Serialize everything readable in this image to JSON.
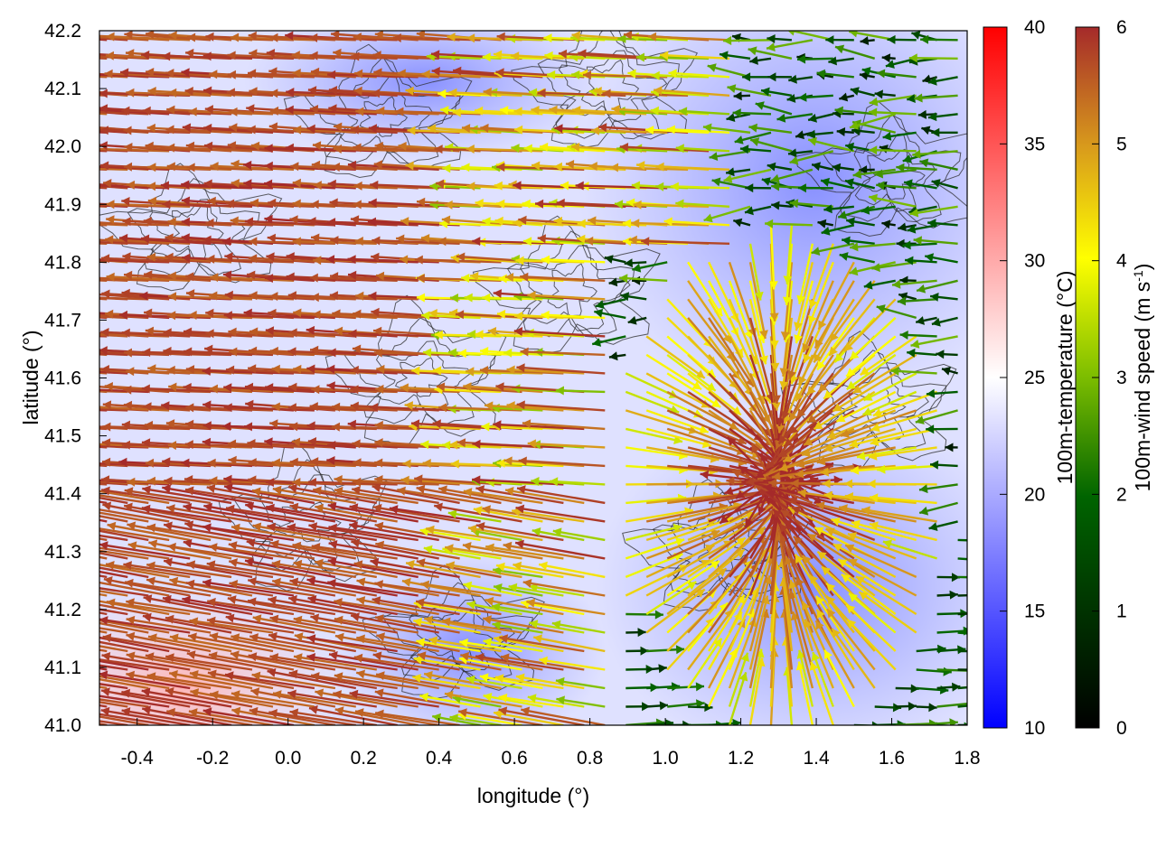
{
  "chart_data": {
    "type": "vector-field",
    "xlabel": "longitude (°)",
    "ylabel": "latitude (°)",
    "xlim": [
      -0.5,
      1.8
    ],
    "ylim": [
      41.0,
      42.2
    ],
    "xticks": [
      "-0.4",
      "-0.2",
      "0.0",
      "0.2",
      "0.4",
      "0.6",
      "0.8",
      "1.0",
      "1.2",
      "1.4",
      "1.6",
      "1.8"
    ],
    "xtick_values": [
      -0.4,
      -0.2,
      0.0,
      0.2,
      0.4,
      0.6,
      0.8,
      1.0,
      1.2,
      1.4,
      1.6,
      1.8
    ],
    "yticks": [
      "41.0",
      "41.1",
      "41.2",
      "41.3",
      "41.4",
      "41.5",
      "41.6",
      "41.7",
      "41.8",
      "41.9",
      "42.0",
      "42.1",
      "42.2"
    ],
    "ytick_values": [
      41.0,
      41.1,
      41.2,
      41.3,
      41.4,
      41.5,
      41.6,
      41.7,
      41.8,
      41.9,
      42.0,
      42.1,
      42.2
    ],
    "background_field": {
      "variable": "100m-temperature",
      "unit": "°C",
      "range": [
        10,
        40
      ],
      "typical": 20,
      "warm_region": {
        "lon": [
          -0.5,
          0.1
        ],
        "lat": [
          41.0,
          41.2
        ],
        "value": 28
      },
      "cool_region": {
        "lon": [
          0.9,
          1.8
        ],
        "lat": [
          41.6,
          42.2
        ],
        "value": 16
      }
    },
    "vector_field": {
      "variable": "100m-wind speed",
      "unit": "m s-1",
      "range": [
        0,
        6
      ],
      "west_flow_speed": 6,
      "convergence_center": [
        1.3,
        41.42
      ],
      "east_flow_speed": 2
    },
    "colorbars": [
      {
        "name": "temperature",
        "title": "100m-temperature (°C)",
        "ticks": [
          "10",
          "15",
          "20",
          "25",
          "30",
          "35",
          "40"
        ],
        "tick_values": [
          10,
          15,
          20,
          25,
          30,
          35,
          40
        ],
        "colors": [
          "#0000ff",
          "#ffffff",
          "#ff0000"
        ]
      },
      {
        "name": "wind-speed",
        "title_main": "100m-wind speed (m s",
        "title_sup": "-1",
        "title_end": ")",
        "ticks": [
          "0",
          "1",
          "2",
          "3",
          "4",
          "5",
          "6"
        ],
        "tick_values": [
          0,
          1,
          2,
          3,
          4,
          5,
          6
        ],
        "colors": [
          "#000000",
          "#006400",
          "#7cbd00",
          "#ffff00",
          "#d89a1c",
          "#a52a2a"
        ]
      }
    ]
  }
}
